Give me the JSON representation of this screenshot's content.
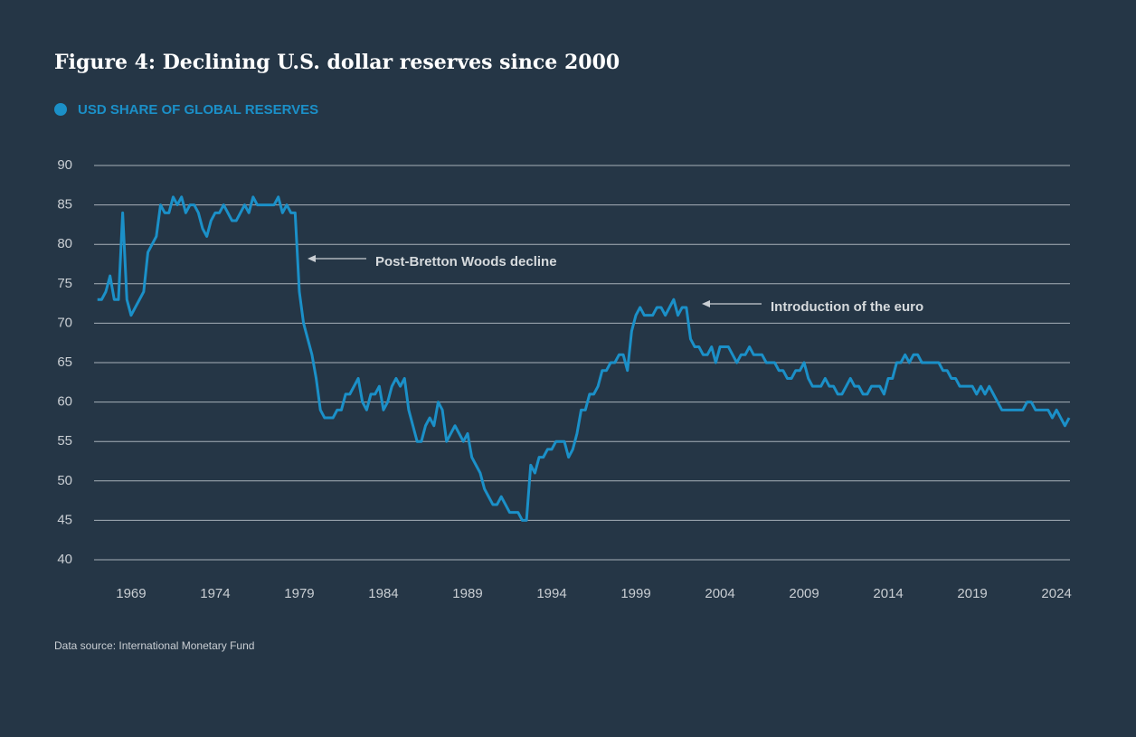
{
  "chart_data": {
    "type": "line",
    "title": "Figure 4: Declining U.S. dollar reserves since 2000",
    "source": "Data source: International Monetary Fund",
    "annotations": [
      "Post-Bretton Woods decline",
      "Introduction of the euro"
    ],
    "xlim": [
      1966.8,
      2024.8
    ],
    "xticks": [
      1969,
      1974,
      1979,
      1984,
      1989,
      1994,
      1999,
      2004,
      2009,
      2014,
      2019,
      2024
    ],
    "ylim": [
      40,
      90
    ],
    "yticks": [
      40,
      45,
      50,
      55,
      60,
      65,
      70,
      75,
      80,
      85,
      90
    ],
    "grid": true,
    "x": [
      1967,
      1967.25,
      1967.5,
      1967.75,
      1968,
      1968.25,
      1968.5,
      1968.75,
      1969,
      1969.25,
      1969.5,
      1969.75,
      1970,
      1970.25,
      1970.5,
      1970.75,
      1971,
      1971.25,
      1971.5,
      1971.75,
      1972,
      1972.25,
      1972.5,
      1972.75,
      1973,
      1973.25,
      1973.5,
      1973.75,
      1974,
      1974.25,
      1974.5,
      1974.75,
      1975,
      1975.25,
      1975.5,
      1975.75,
      1976,
      1976.25,
      1976.5,
      1976.75,
      1977,
      1977.25,
      1977.5,
      1977.75,
      1978,
      1978.25,
      1978.5,
      1978.75,
      1979,
      1979.25,
      1979.5,
      1979.75,
      1980,
      1980.25,
      1980.5,
      1980.75,
      1981,
      1981.25,
      1981.5,
      1981.75,
      1982,
      1982.25,
      1982.5,
      1982.75,
      1983,
      1983.25,
      1983.5,
      1983.75,
      1984,
      1984.25,
      1984.5,
      1984.75,
      1985,
      1985.25,
      1985.5,
      1985.75,
      1986,
      1986.25,
      1986.5,
      1986.75,
      1987,
      1987.25,
      1987.5,
      1987.75,
      1988,
      1988.25,
      1988.5,
      1988.75,
      1989,
      1989.25,
      1989.5,
      1989.75,
      1990,
      1990.25,
      1990.5,
      1990.75,
      1991,
      1991.25,
      1991.5,
      1991.75,
      1992,
      1992.25,
      1992.5,
      1992.75,
      1993,
      1993.25,
      1993.5,
      1993.75,
      1994,
      1994.25,
      1994.5,
      1994.75,
      1995,
      1995.25,
      1995.5,
      1995.75,
      1996,
      1996.25,
      1996.5,
      1996.75,
      1997,
      1997.25,
      1997.5,
      1997.75,
      1998,
      1998.25,
      1998.5,
      1998.75,
      1999,
      1999.25,
      1999.5,
      1999.75,
      2000,
      2000.25,
      2000.5,
      2000.75,
      2001,
      2001.25,
      2001.5,
      2001.75,
      2002,
      2002.25,
      2002.5,
      2002.75,
      2003,
      2003.25,
      2003.5,
      2003.75,
      2004,
      2004.25,
      2004.5,
      2004.75,
      2005,
      2005.25,
      2005.5,
      2005.75,
      2006,
      2006.25,
      2006.5,
      2006.75,
      2007,
      2007.25,
      2007.5,
      2007.75,
      2008,
      2008.25,
      2008.5,
      2008.75,
      2009,
      2009.25,
      2009.5,
      2009.75,
      2010,
      2010.25,
      2010.5,
      2010.75,
      2011,
      2011.25,
      2011.5,
      2011.75,
      2012,
      2012.25,
      2012.5,
      2012.75,
      2013,
      2013.25,
      2013.5,
      2013.75,
      2014,
      2014.25,
      2014.5,
      2014.75,
      2015,
      2015.25,
      2015.5,
      2015.75,
      2016,
      2016.25,
      2016.5,
      2016.75,
      2017,
      2017.25,
      2017.5,
      2017.75,
      2018,
      2018.25,
      2018.5,
      2018.75,
      2019,
      2019.25,
      2019.5,
      2019.75,
      2020,
      2020.25,
      2020.5,
      2020.75,
      2021,
      2021.25,
      2021.5,
      2021.75,
      2022,
      2022.25,
      2022.5,
      2022.75,
      2023,
      2023.25,
      2023.5,
      2023.75,
      2024,
      2024.25,
      2024.5,
      2024.75
    ],
    "series": [
      {
        "name": "USD SHARE OF GLOBAL RESERVES",
        "color": "#1b90c8",
        "values": [
          73,
          73,
          74,
          76,
          73,
          73,
          84,
          73,
          71,
          72,
          73,
          74,
          79,
          80,
          81,
          85,
          84,
          84,
          86,
          85,
          86,
          84,
          85,
          85,
          84,
          82,
          81,
          83,
          84,
          84,
          85,
          84,
          83,
          83,
          84,
          85,
          84,
          86,
          85,
          85,
          85,
          85,
          85,
          86,
          84,
          85,
          84,
          84,
          74,
          70,
          68,
          66,
          63,
          59,
          58,
          58,
          58,
          59,
          59,
          61,
          61,
          62,
          63,
          60,
          59,
          61,
          61,
          62,
          59,
          60,
          62,
          63,
          62,
          63,
          59,
          57,
          55,
          55,
          57,
          58,
          57,
          60,
          59,
          55,
          56,
          57,
          56,
          55,
          56,
          53,
          52,
          51,
          49,
          48,
          47,
          47,
          48,
          47,
          46,
          46,
          46,
          45,
          45,
          52,
          51,
          53,
          53,
          54,
          54,
          55,
          55,
          55,
          53,
          54,
          56,
          59,
          59,
          61,
          61,
          62,
          64,
          64,
          65,
          65,
          66,
          66,
          64,
          69,
          71,
          72,
          71,
          71,
          71,
          72,
          72,
          71,
          72,
          73,
          71,
          72,
          72,
          68,
          67,
          67,
          66,
          66,
          67,
          65,
          67,
          67,
          67,
          66,
          65,
          66,
          66,
          67,
          66,
          66,
          66,
          65,
          65,
          65,
          64,
          64,
          63,
          63,
          64,
          64,
          65,
          63,
          62,
          62,
          62,
          63,
          62,
          62,
          61,
          61,
          62,
          63,
          62,
          62,
          61,
          61,
          62,
          62,
          62,
          61,
          63,
          63,
          65,
          65,
          66,
          65,
          66,
          66,
          65,
          65,
          65,
          65,
          65,
          64,
          64,
          63,
          63,
          62,
          62,
          62,
          62,
          61,
          62,
          61,
          62,
          61,
          60,
          59,
          59,
          59,
          59,
          59,
          59,
          60,
          60,
          59,
          59,
          59,
          59,
          58,
          59,
          58,
          57,
          58
        ]
      }
    ]
  }
}
